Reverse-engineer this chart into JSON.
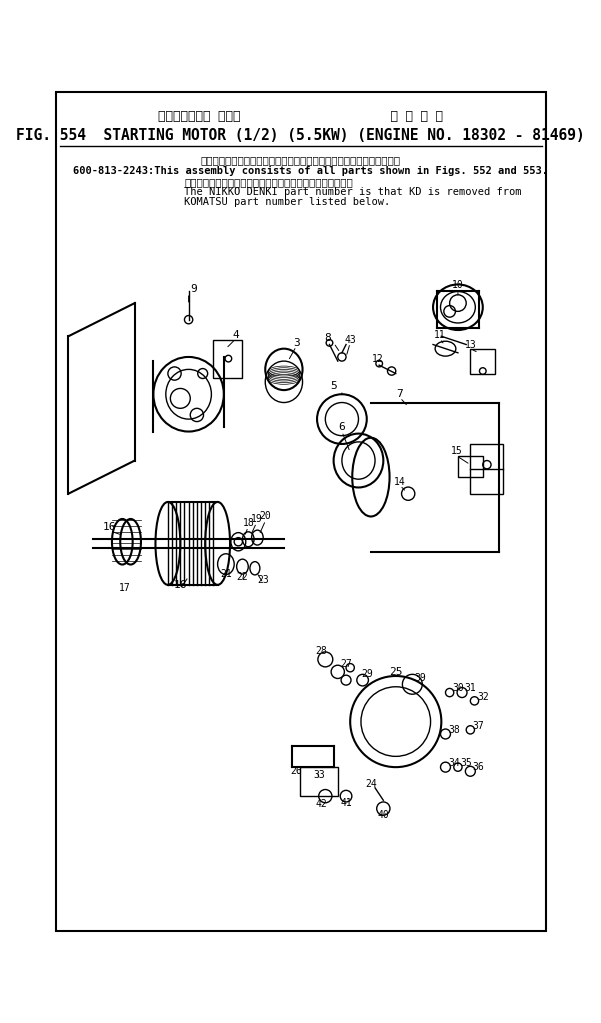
{
  "bg_color": "#ffffff",
  "title_line1": "スターティング モータ                    適 用 号 機",
  "title_line2": "FIG. 554  STARTING MOTOR (1/2) (5.5KW) (ENGINE NO. 18302 - 81469)",
  "note_line1": "このアセンブリの構成部品は第５５２図および第５５３図を含みます．",
  "note_line2": "600-813-2243:This assembly consists of all parts shown in Figs. 552 and 553.",
  "note_line3": "品番のメーカ記号ＫＤを除いたものが日興電機の品番です．",
  "note_line4": "The NIKKO DENKI part number is that KD is removed from",
  "note_line5": "KOMATSU part number listed below.",
  "border_color": "#000000",
  "text_color": "#000000",
  "fig_width": 6.01,
  "fig_height": 10.23,
  "dpi": 100
}
